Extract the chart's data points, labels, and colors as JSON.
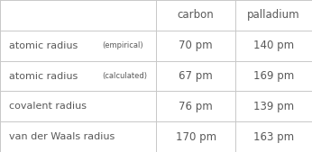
{
  "col_headers": [
    "",
    "carbon",
    "palladium"
  ],
  "rows": [
    {
      "label_main": "atomic radius",
      "label_sub": "(empirical)",
      "carbon": "70 pm",
      "palladium": "140 pm"
    },
    {
      "label_main": "atomic radius",
      "label_sub": "(calculated)",
      "carbon": "67 pm",
      "palladium": "169 pm"
    },
    {
      "label_main": "covalent radius",
      "label_sub": "",
      "carbon": "76 pm",
      "palladium": "139 pm"
    },
    {
      "label_main": "van der Waals radius",
      "label_sub": "",
      "carbon": "170 pm",
      "palladium": "163 pm"
    }
  ],
  "bg_color": "#ffffff",
  "text_color": "#595959",
  "line_color": "#c8c8c8",
  "label_fontsize": 8.0,
  "sub_fontsize": 6.0,
  "header_fontsize": 8.5,
  "value_fontsize": 8.5,
  "col_divs": [
    0.0,
    0.5,
    0.755,
    1.0
  ],
  "n_rows": 5,
  "figsize": [
    3.46,
    1.69
  ],
  "dpi": 100
}
